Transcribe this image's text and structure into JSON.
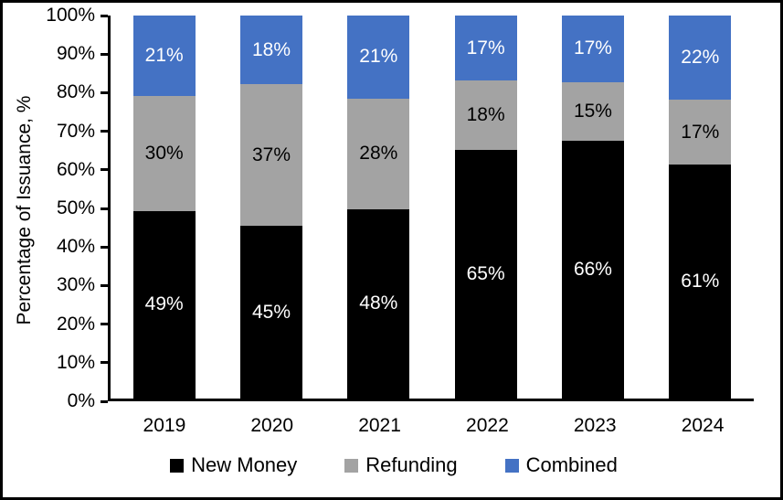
{
  "chart_data": {
    "type": "bar",
    "stacked": true,
    "orientation": "vertical",
    "categories": [
      "2019",
      "2020",
      "2021",
      "2022",
      "2023",
      "2024"
    ],
    "series": [
      {
        "name": "New Money",
        "color": "#000000",
        "label_color": "#FFFFFF",
        "values": [
          49,
          45,
          48,
          65,
          66,
          61
        ]
      },
      {
        "name": "Refunding",
        "color": "#A3A3A3",
        "label_color": "#000000",
        "values": [
          30,
          37,
          28,
          18,
          15,
          17
        ]
      },
      {
        "name": "Combined",
        "color": "#4472C4",
        "label_color": "#FFFFFF",
        "values": [
          21,
          18,
          21,
          17,
          17,
          22
        ]
      }
    ],
    "data_label_suffix": "%",
    "title": "",
    "xlabel": "",
    "ylabel": "Percentage of Issuance, %",
    "ylim": [
      0,
      100
    ],
    "y_ticks": [
      "0%",
      "10%",
      "20%",
      "30%",
      "40%",
      "50%",
      "60%",
      "70%",
      "80%",
      "90%",
      "100%"
    ],
    "grid": false,
    "legend_position": "bottom",
    "frame_border_color": "#000000",
    "background_color": "#FFFFFF"
  }
}
